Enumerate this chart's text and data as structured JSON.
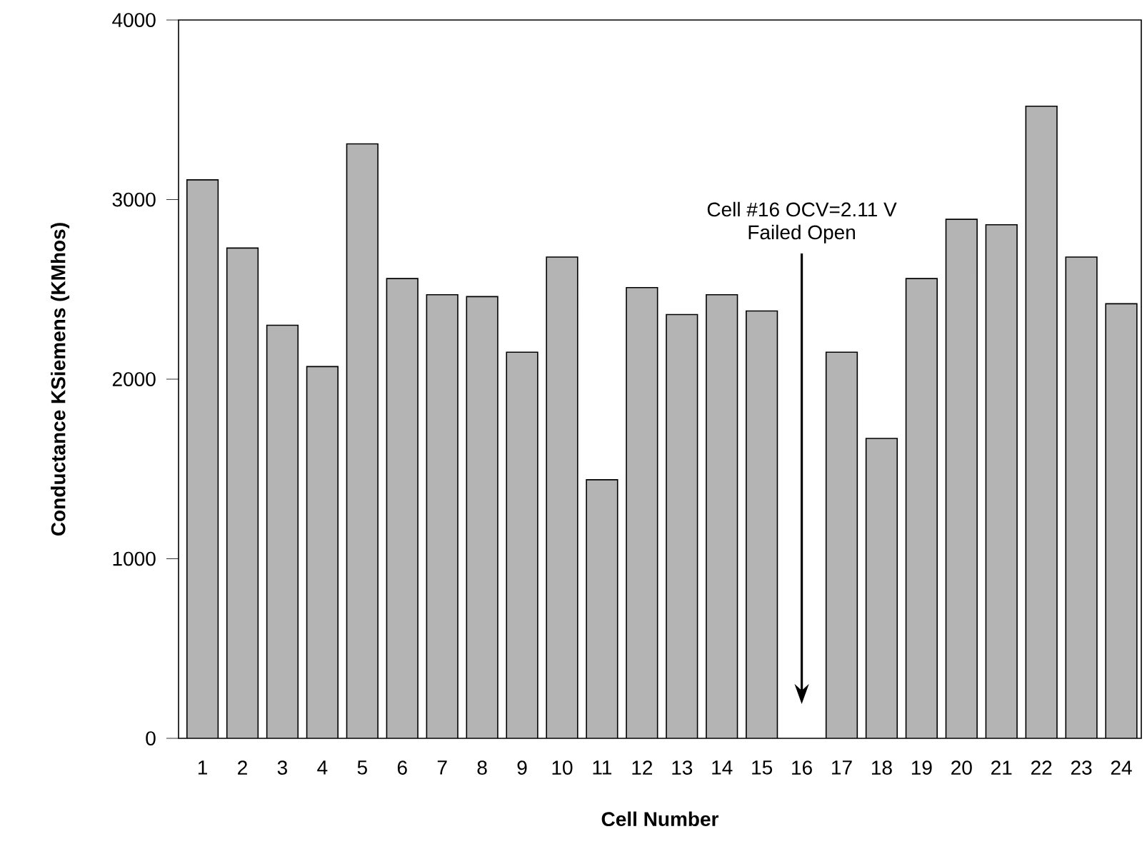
{
  "chart_data": {
    "type": "bar",
    "xlabel": "Cell   Number",
    "ylabel": "Conductance   KSiemens   (KMhos)",
    "categories": [
      "1",
      "2",
      "3",
      "4",
      "5",
      "6",
      "7",
      "8",
      "9",
      "10",
      "11",
      "12",
      "13",
      "14",
      "15",
      "16",
      "17",
      "18",
      "19",
      "20",
      "21",
      "22",
      "23",
      "24"
    ],
    "values": [
      3110,
      2730,
      2300,
      2070,
      3310,
      2560,
      2470,
      2460,
      2150,
      2680,
      1440,
      2510,
      2360,
      2470,
      2380,
      null,
      2150,
      1670,
      2560,
      2890,
      2860,
      3520,
      2680,
      2420
    ],
    "color": "#b4b4b4",
    "ylim": [
      0,
      4000
    ],
    "yticks": [
      0,
      1000,
      2000,
      3000,
      4000
    ],
    "grid": false,
    "annotations": [
      "Cell #16  OCV=2.11 V",
      "Failed Open"
    ]
  }
}
